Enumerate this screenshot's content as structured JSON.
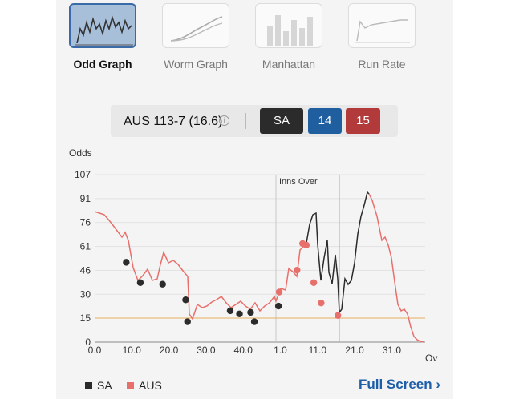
{
  "tabs": [
    {
      "label": "Odd Graph",
      "active": true,
      "icon": "odd-graph-icon"
    },
    {
      "label": "Worm Graph",
      "active": false,
      "icon": "worm-graph-icon"
    },
    {
      "label": "Manhattan",
      "active": false,
      "icon": "manhattan-icon"
    },
    {
      "label": "Run Rate",
      "active": false,
      "icon": "run-rate-icon"
    }
  ],
  "score": {
    "text": "AUS 113-7 (16.6)",
    "info_icon": "info-icon"
  },
  "chips": [
    {
      "label": "SA",
      "color": "#2b2b2b"
    },
    {
      "label": "14",
      "color": "#1f5fa0"
    },
    {
      "label": "15",
      "color": "#b23a3a"
    }
  ],
  "chart_data": {
    "type": "line",
    "ylabel": "Odds",
    "xlabel": "Ov",
    "y_ticks": [
      "0",
      "15",
      "30",
      "46",
      "61",
      "76",
      "91",
      "107"
    ],
    "x_ticks": [
      "0.0",
      "10.0",
      "20.0",
      "30.0",
      "40.0",
      "1.0",
      "11.0",
      "21.0",
      "31.0"
    ],
    "annotation": "Inns Over",
    "colors": {
      "SA": "#2b2b2b",
      "AUS": "#e8706c",
      "innings_line": "#c8c8c8",
      "current_line": "#e8b060"
    },
    "series": [
      {
        "name": "SA",
        "points": [
          [
            8.5,
            51
          ],
          [
            12.3,
            38
          ],
          [
            18.3,
            37
          ],
          [
            24.5,
            27
          ],
          [
            25,
            13
          ],
          [
            36.5,
            20
          ],
          [
            39,
            18
          ],
          [
            42,
            19
          ],
          [
            43,
            13
          ],
          [
            49.5,
            23
          ]
        ]
      },
      {
        "name": "AUS",
        "points": [
          [
            49.7,
            32
          ],
          [
            54.5,
            46
          ],
          [
            56,
            63
          ],
          [
            57,
            62
          ],
          [
            59,
            38
          ],
          [
            61,
            25
          ],
          [
            65.5,
            17
          ]
        ]
      }
    ]
  },
  "legend": [
    {
      "label": "SA",
      "color": "#2b2b2b"
    },
    {
      "label": "AUS",
      "color": "#e8706c"
    }
  ],
  "fullscreen_label": "Full Screen ›"
}
